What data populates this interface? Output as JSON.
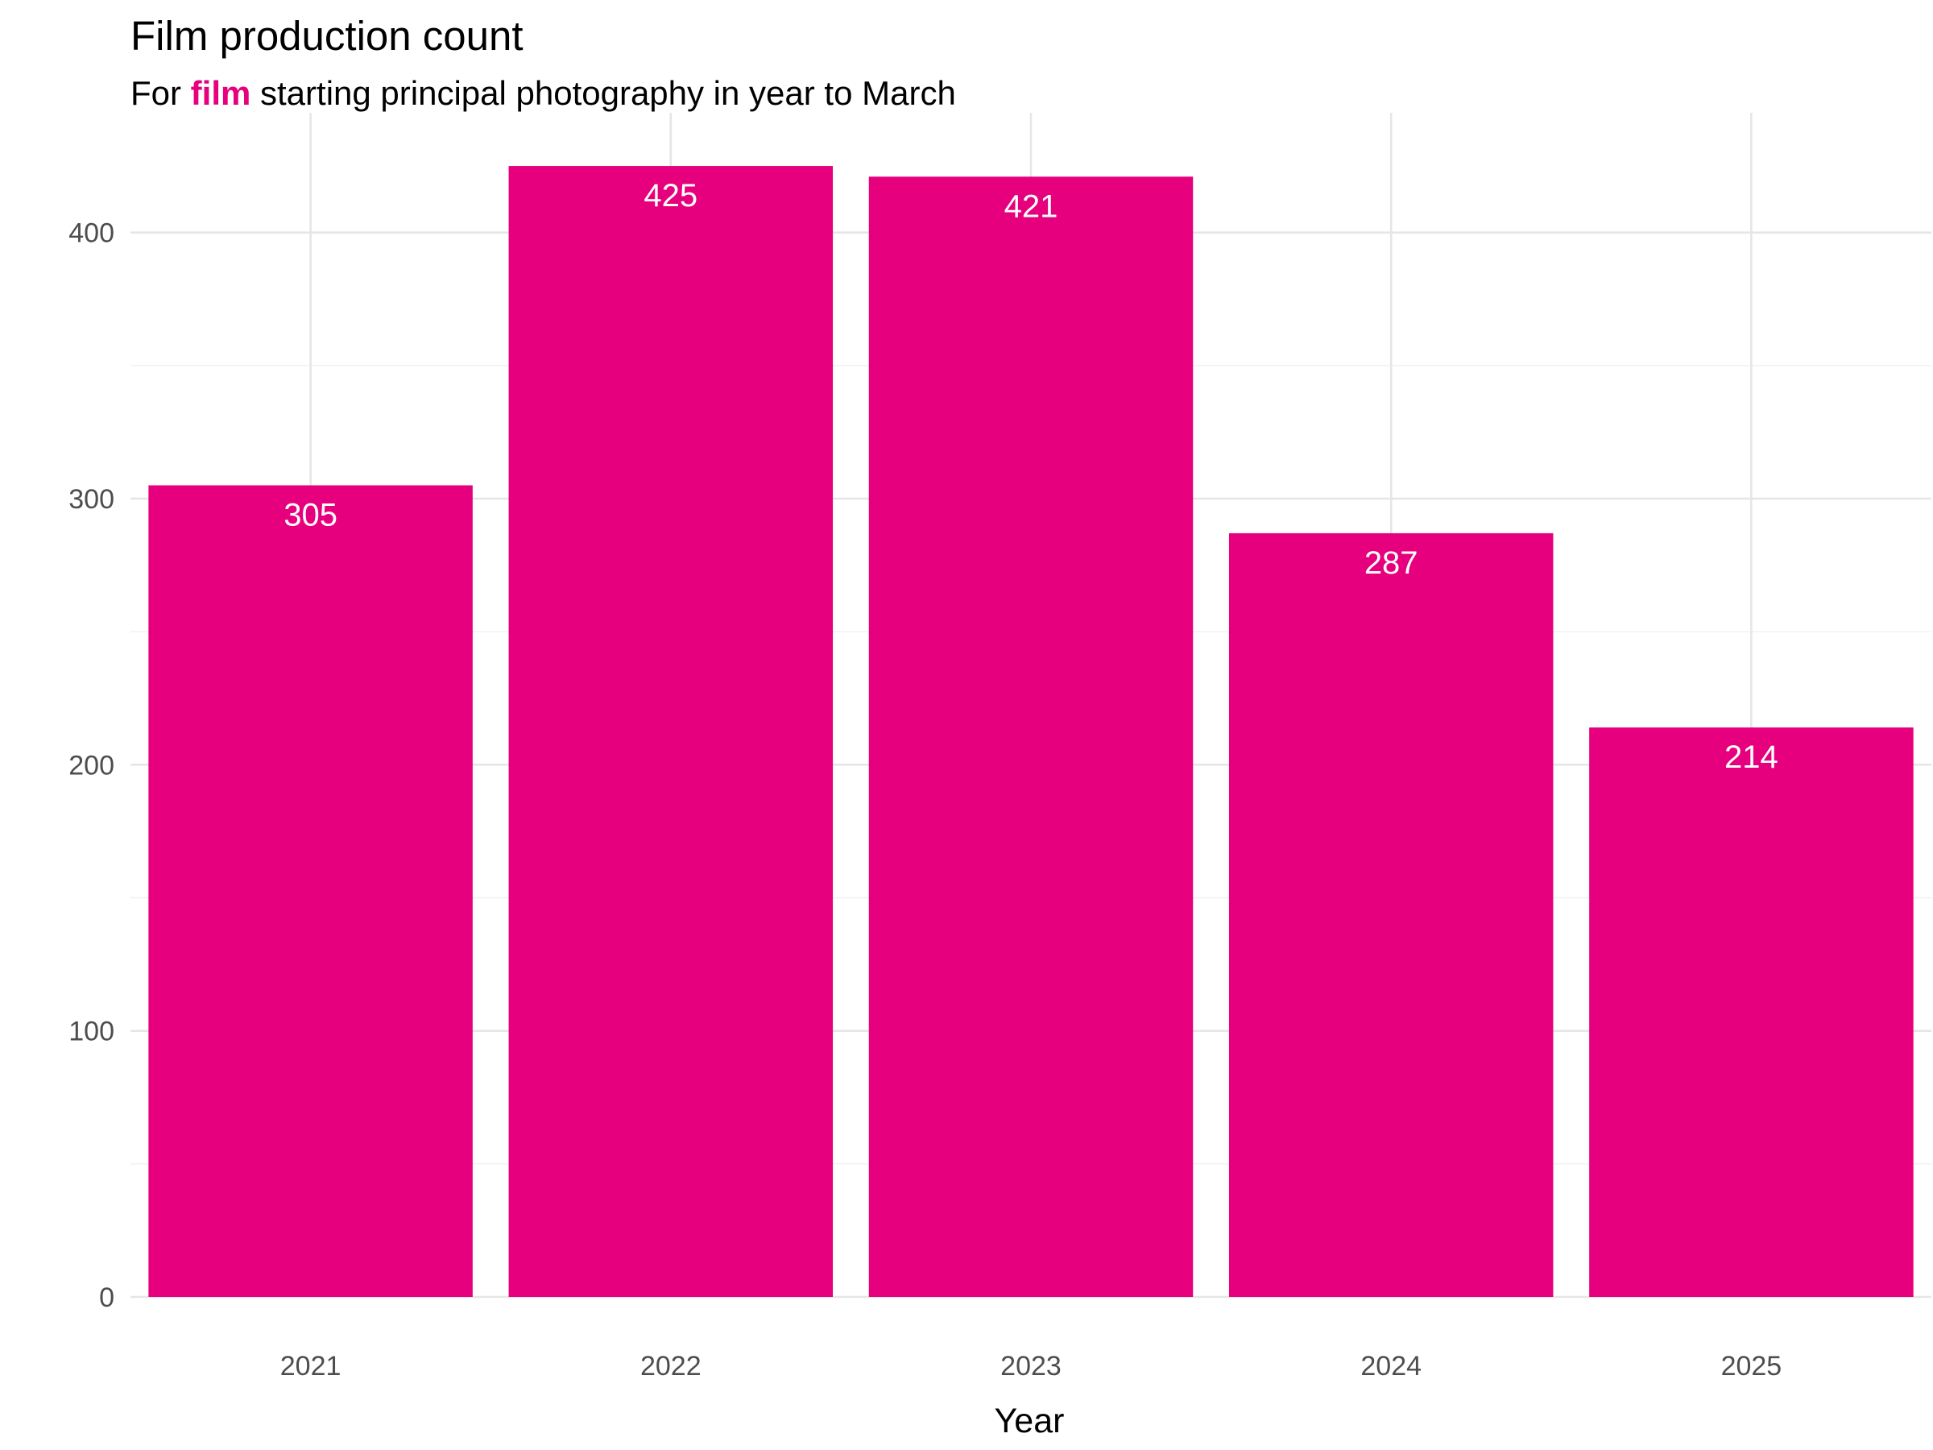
{
  "chart_data": {
    "type": "bar",
    "title": "Film production count",
    "subtitle": {
      "prefix": "For ",
      "highlight": "film",
      "suffix": " starting principal photography in year to March"
    },
    "xlabel": "Year",
    "ylabel": "",
    "categories": [
      "2021",
      "2022",
      "2023",
      "2024",
      "2025"
    ],
    "values": [
      305,
      425,
      421,
      287,
      214
    ],
    "ylim": [
      0,
      445
    ],
    "yticks": [
      0,
      100,
      200,
      300,
      400
    ],
    "grid": true,
    "legend": "none",
    "bar_color": "#E6007E",
    "label_color": "#FFFFFF"
  }
}
